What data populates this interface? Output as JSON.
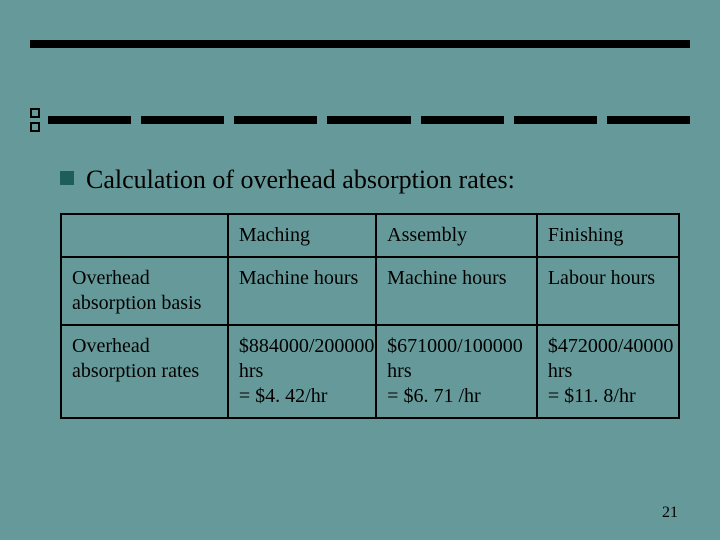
{
  "slide": {
    "background_color": "#669999",
    "decoration": {
      "top_bar_color": "#000000",
      "square_border_color": "#000000",
      "dash_color": "#000000",
      "dash_count": 7
    },
    "bullet_color": "#1f5c5c",
    "heading": "Calculation of  overhead absorption rates:",
    "table": {
      "columns": [
        {
          "header": "",
          "width_pct": 27
        },
        {
          "header": "Maching",
          "width_pct": 24
        },
        {
          "header": "Assembly",
          "width_pct": 26
        },
        {
          "header": "Finishing",
          "width_pct": 23
        }
      ],
      "rows": [
        {
          "label": "Overhead absorption basis",
          "cells": [
            "Machine hours",
            "Machine hours",
            "Labour hours"
          ]
        },
        {
          "label": "Overhead absorption rates",
          "cells": [
            "$884000/200000 hrs\n= $4. 42/hr",
            "$671000/100000 hrs\n= $6. 71 /hr",
            "$472000/40000 hrs\n= $11. 8/hr"
          ]
        }
      ],
      "border_color": "#000000",
      "cell_fontsize": 20,
      "heading_fontsize": 26
    },
    "page_number": "21"
  }
}
